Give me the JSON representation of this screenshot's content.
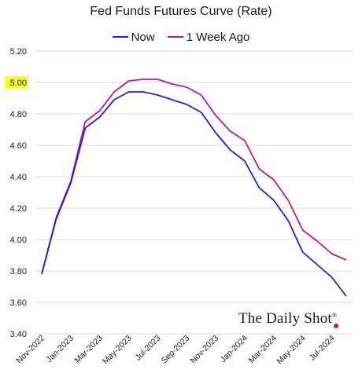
{
  "chart_data": {
    "type": "line",
    "title": "Fed Funds Futures Curve (Rate)",
    "xlabel": "",
    "ylabel": "",
    "ylim": [
      3.4,
      5.2
    ],
    "yticks": [
      "3.40",
      "3.60",
      "3.80",
      "4.00",
      "4.20",
      "4.40",
      "4.60",
      "4.80",
      "5.00",
      "5.20"
    ],
    "highlighted_ytick": "5.00",
    "highlight_color": "#ffff33",
    "grid": true,
    "legend_position": "top-center",
    "x": [
      "Nov-2022",
      "Dec-2022",
      "Jan-2023",
      "Feb-2023",
      "Mar-2023",
      "Apr-2023",
      "May-2023",
      "Jun-2023",
      "Jul-2023",
      "Aug-2023",
      "Sep-2023",
      "Oct-2023",
      "Nov-2023",
      "Dec-2023",
      "Jan-2024",
      "Feb-2024",
      "Mar-2024",
      "Apr-2024",
      "May-2024",
      "Jun-2024",
      "Jul-2024",
      "Aug-2024"
    ],
    "xtick_labels": [
      "Nov-2022",
      "Jan-2023",
      "Mar-2023",
      "May-2023",
      "Jul-2023",
      "Sep-2023",
      "Nov-2023",
      "Jan-2024",
      "Mar-2024",
      "May-2024",
      "Jul-2024"
    ],
    "series": [
      {
        "name": "Now",
        "color": "#1f1fd6",
        "values": [
          3.78,
          4.13,
          4.36,
          4.71,
          4.78,
          4.89,
          4.94,
          4.94,
          4.92,
          4.89,
          4.86,
          4.81,
          4.68,
          4.57,
          4.5,
          4.33,
          4.25,
          4.12,
          3.92,
          3.84,
          3.76,
          3.64
        ]
      },
      {
        "name": "1 Week Ago",
        "color": "#b5189a",
        "values": [
          3.78,
          4.14,
          4.37,
          4.75,
          4.82,
          4.94,
          5.01,
          5.02,
          5.02,
          4.99,
          4.97,
          4.92,
          4.79,
          4.69,
          4.63,
          4.45,
          4.38,
          4.25,
          4.06,
          3.99,
          3.91,
          3.87
        ]
      }
    ]
  },
  "brand": {
    "text": "The Daily Shot",
    "mark": "®"
  }
}
